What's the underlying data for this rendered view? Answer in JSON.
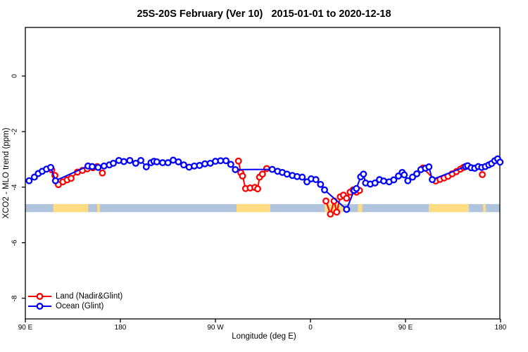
{
  "header": {
    "title": "25S-20S February (Ver 10)   2015-01-01 to 2020-12-18"
  },
  "chart_data": {
    "type": "line",
    "title": "25S-20S February (Ver 10)   2015-01-01 to 2020-12-18",
    "xlabel": "Longitude (deg E)",
    "ylabel": "XCO2 - MLO trend (ppm)",
    "x_axis": {
      "note": "longitude wraps eastward starting at 90E; positions given as continuous degrees 90..540",
      "range": [
        88.7,
        540.7
      ],
      "ticks": [
        {
          "pos": 90,
          "label": "90 E"
        },
        {
          "pos": 180,
          "label": "180"
        },
        {
          "pos": 270,
          "label": "90 W"
        },
        {
          "pos": 360,
          "label": "0"
        },
        {
          "pos": 450,
          "label": "90 E"
        },
        {
          "pos": 540,
          "label": "180"
        }
      ]
    },
    "y_axis": {
      "range": [
        -8.75,
        1.75
      ],
      "ticks": [
        {
          "value": 0,
          "label": "0"
        },
        {
          "value": -2,
          "label": "-2"
        },
        {
          "value": -4,
          "label": "-4"
        },
        {
          "value": -6,
          "label": "-6"
        },
        {
          "value": -8,
          "label": "-8"
        }
      ],
      "grid": false
    },
    "land_ocean_band": {
      "ocean_color": "#b0c4de",
      "land_color": "#ffdc82",
      "value_top": -4.61,
      "value_bottom": -4.9,
      "land_patches": [
        [
          116.5,
          149.5
        ],
        [
          158,
          160.5
        ],
        [
          290,
          322
        ],
        [
          373.5,
          391
        ],
        [
          405,
          409
        ],
        [
          472,
          510
        ],
        [
          523.5,
          526
        ]
      ]
    },
    "marker": {
      "shape": "open-circle",
      "radius": 3.8,
      "stroke_width": 2.3,
      "fill": "#ffffff"
    },
    "series": [
      {
        "name": "Land (Nadir&Glint)",
        "color": "#ff0000",
        "segments": [
          [
            [
              115,
              -3.38
            ],
            [
              118,
              -3.58
            ],
            [
              121.3,
              -3.91
            ],
            [
              125.5,
              -3.81
            ],
            [
              129.5,
              -3.74
            ],
            [
              133.3,
              -3.68
            ],
            [
              139.3,
              -3.46
            ],
            [
              144,
              -3.4
            ],
            [
              148.7,
              -3.34
            ],
            [
              154,
              -3.3
            ],
            [
              158,
              -3.26
            ],
            [
              162.9,
              -3.49
            ]
          ],
          [
            [
              291.8,
              -3.06
            ],
            [
              294,
              -3.48
            ],
            [
              295.7,
              -3.6
            ],
            [
              298.5,
              -4.05
            ],
            [
              302.9,
              -4.03
            ],
            [
              307.3,
              -4.01
            ],
            [
              310,
              -4.06
            ],
            [
              311.8,
              -3.64
            ],
            [
              314.5,
              -3.53
            ],
            [
              318.5,
              -3.33
            ]
          ],
          [
            [
              374.7,
              -4.5
            ],
            [
              378.9,
              -4.97
            ],
            [
              382.3,
              -4.5
            ],
            [
              384.9,
              -4.9
            ],
            [
              388.2,
              -4.35
            ],
            [
              391.2,
              -4.29
            ],
            [
              394.2,
              -4.4
            ],
            [
              397.5,
              -4.18
            ],
            [
              400.4,
              -4.1
            ],
            [
              403.6,
              -4.18
            ],
            [
              406.4,
              -4.12
            ]
          ],
          [
            [
              466.5,
              -3.31
            ],
            [
              478.7,
              -3.78
            ],
            [
              482.7,
              -3.72
            ],
            [
              486.5,
              -3.67
            ],
            [
              490.2,
              -3.61
            ],
            [
              494.2,
              -3.52
            ],
            [
              498.2,
              -3.44
            ],
            [
              502,
              -3.35
            ],
            [
              504.9,
              -3.29
            ],
            [
              507.3,
              -3.26
            ]
          ],
          [
            [
              522.7,
              -3.55
            ]
          ]
        ]
      },
      {
        "name": "Ocean (Glint)",
        "color": "#0000ff",
        "segments": [
          [
            [
              93.5,
              -3.77
            ],
            [
              98.5,
              -3.64
            ],
            [
              102.2,
              -3.51
            ],
            [
              106,
              -3.43
            ],
            [
              110,
              -3.35
            ],
            [
              114,
              -3.29
            ],
            [
              118.5,
              -3.77
            ],
            [
              149.3,
              -3.24
            ],
            [
              153.3,
              -3.26
            ],
            [
              158.9,
              -3.29
            ],
            [
              164.5,
              -3.24
            ],
            [
              169.5,
              -3.2
            ],
            [
              173.3,
              -3.14
            ],
            [
              178.5,
              -3.04
            ],
            [
              183.3,
              -3.08
            ],
            [
              188.9,
              -3.04
            ],
            [
              194.5,
              -3.14
            ],
            [
              199.3,
              -3.04
            ],
            [
              204.5,
              -3.27
            ],
            [
              208.9,
              -3.12
            ],
            [
              211.8,
              -3.07
            ],
            [
              214.5,
              -3.09
            ],
            [
              220,
              -3.12
            ],
            [
              225.1,
              -3.12
            ],
            [
              230,
              -3.03
            ],
            [
              234.9,
              -3.09
            ],
            [
              240,
              -3.2
            ],
            [
              245.1,
              -3.28
            ],
            [
              250,
              -3.24
            ],
            [
              254.9,
              -3.22
            ],
            [
              260,
              -3.16
            ],
            [
              265.1,
              -3.14
            ],
            [
              270,
              -3.07
            ],
            [
              274.9,
              -3.05
            ],
            [
              280,
              -3.05
            ],
            [
              284.5,
              -3.18
            ],
            [
              288.9,
              -3.37
            ],
            [
              323.8,
              -3.36
            ],
            [
              328.9,
              -3.43
            ],
            [
              333.3,
              -3.47
            ],
            [
              337.8,
              -3.53
            ],
            [
              342.9,
              -3.58
            ],
            [
              347.3,
              -3.62
            ],
            [
              352.2,
              -3.64
            ],
            [
              356.7,
              -3.81
            ],
            [
              360.7,
              -3.7
            ],
            [
              365.1,
              -3.73
            ],
            [
              369.5,
              -3.9
            ],
            [
              373.3,
              -4.1
            ],
            [
              394.2,
              -4.8
            ],
            [
              401.3,
              -4.12
            ],
            [
              403.5,
              -4.05
            ],
            [
              407.5,
              -3.63
            ],
            [
              410.2,
              -3.53
            ],
            [
              412.2,
              -3.85
            ],
            [
              416.7,
              -3.89
            ],
            [
              421.1,
              -3.85
            ],
            [
              425.3,
              -3.73
            ],
            [
              429.3,
              -3.78
            ],
            [
              434.5,
              -3.81
            ],
            [
              438.9,
              -3.74
            ],
            [
              443.3,
              -3.6
            ],
            [
              446.9,
              -3.47
            ],
            [
              448.8,
              -3.56
            ],
            [
              452.2,
              -3.77
            ],
            [
              456.7,
              -3.64
            ],
            [
              460.7,
              -3.52
            ],
            [
              464.5,
              -3.37
            ],
            [
              468.9,
              -3.32
            ],
            [
              472.2,
              -3.27
            ],
            [
              475.3,
              -3.73
            ],
            [
              506.9,
              -3.26
            ],
            [
              508.9,
              -3.23
            ],
            [
              512.2,
              -3.3
            ],
            [
              515.5,
              -3.32
            ],
            [
              518.9,
              -3.26
            ],
            [
              522.2,
              -3.29
            ],
            [
              525.5,
              -3.26
            ],
            [
              528.9,
              -3.2
            ],
            [
              531.5,
              -3.15
            ],
            [
              534.5,
              -3.05
            ],
            [
              537.3,
              -2.98
            ],
            [
              539.5,
              -3.1
            ]
          ]
        ]
      }
    ],
    "legend": {
      "position": "bottom-left",
      "entries": [
        {
          "label": "Land (Nadir&Glint)",
          "color": "#ff0000"
        },
        {
          "label": "Ocean (Glint)",
          "color": "#0000ff"
        }
      ]
    }
  }
}
